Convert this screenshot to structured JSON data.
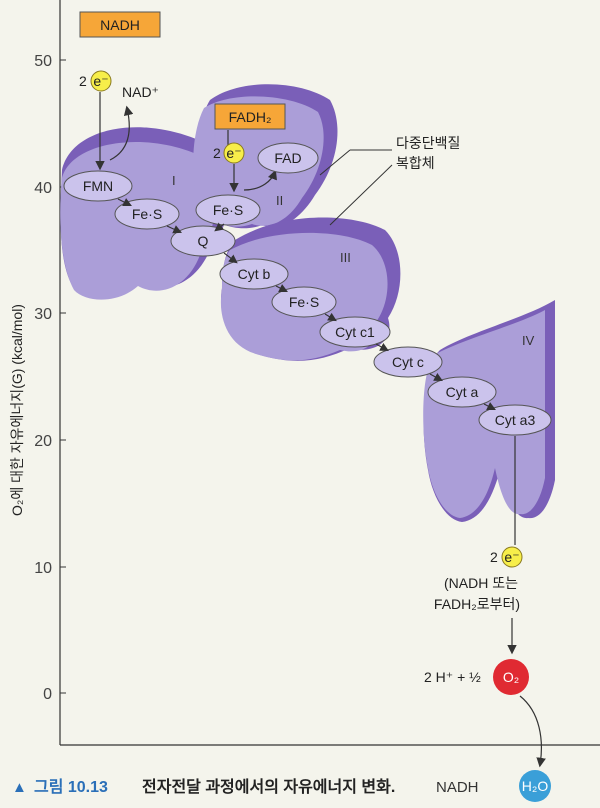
{
  "y_axis": {
    "label": "O₂에 대한 자유에너지(G) (kcal/mol)",
    "ticks": [
      "50",
      "40",
      "30",
      "20",
      "10",
      "0"
    ]
  },
  "boxes": {
    "nadh": "NADH",
    "fadh2": "FADH₂"
  },
  "electron": {
    "coef": "2",
    "symbol": "e⁻"
  },
  "nad_plus": "NAD⁺",
  "complex_labels": [
    "I",
    "II",
    "III",
    "IV"
  ],
  "annotation": {
    "line1": "다중단백질",
    "line2": "복합체"
  },
  "carriers": {
    "fmn": "FMN",
    "fes1": "Fe·S",
    "fad": "FAD",
    "fes2": "Fe·S",
    "q": "Q",
    "cytb": "Cyt b",
    "fes3": "Fe·S",
    "cytc1": "Cyt c1",
    "cytc": "Cyt c",
    "cyta": "Cyt a",
    "cyta3": "Cyt a3"
  },
  "source_note": {
    "line1": "(NADH 또는",
    "line2": "FADH₂로부터)"
  },
  "reaction": {
    "lhs": "2 H⁺ + ½",
    "o2": "O₂",
    "h2o": "H₂O"
  },
  "caption": {
    "marker": "▲",
    "figure": "그림 10.13",
    "title": "전자전달 과정에서의 자유에너지 변화.",
    "rest": "NADH"
  },
  "colors": {
    "complex": "#ab9ed8",
    "complex_edge": "#7a5fb8",
    "carrier": "#cbc3ec",
    "box": "#f6a638",
    "electron": "#f7ee4a",
    "o2": "#e02a32",
    "h2o": "#3a9fd8"
  }
}
